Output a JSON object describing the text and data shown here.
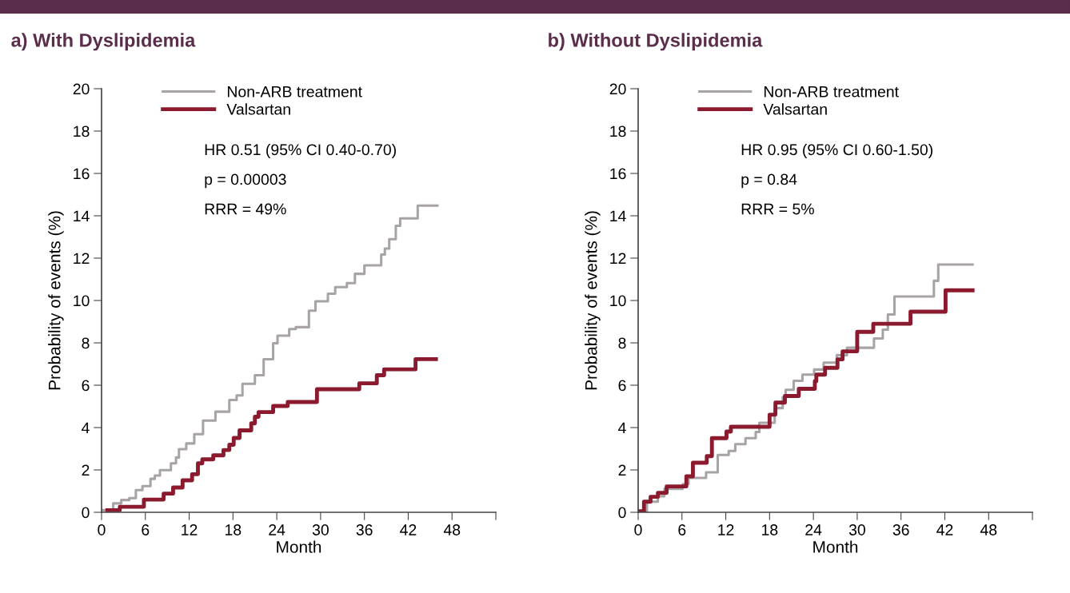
{
  "chart_data": [
    {
      "type": "step",
      "title": "a) With Dyslipidemia",
      "xlabel": "Month",
      "ylabel": "Probability of events (%)",
      "xlim": [
        0,
        54
      ],
      "xticks": [
        0,
        6,
        12,
        18,
        24,
        30,
        36,
        42,
        48,
        {
          "value": 54,
          "label": null
        }
      ],
      "ylim": [
        0,
        20
      ],
      "yticks": [
        0,
        2,
        4,
        6,
        8,
        10,
        12,
        14,
        16,
        18,
        20
      ],
      "grid": false,
      "legend": "top left",
      "annotations": [
        "HR 0.51 (95% CI 0.40-0.70)",
        "p = 0.00003",
        "RRR = 49%"
      ],
      "series": [
        {
          "name": "Non-ARB treatment",
          "color": "#a8a3a5",
          "x": [
            0,
            1.6,
            2.7,
            3.8,
            4.7,
            5.6,
            6.7,
            7.3,
            8.0,
            9.5,
            10.2,
            10.6,
            11.6,
            12.7,
            13.9,
            15.6,
            17.5,
            18.5,
            19.3,
            21.0,
            22.2,
            23.5,
            24.1,
            25.7,
            26.6,
            28.4,
            29.3,
            31.0,
            32.0,
            33.6,
            34.7,
            36.0,
            38.3,
            38.8,
            39.4,
            40.3,
            40.9,
            43.3,
            46.0
          ],
          "values": [
            0.1,
            0.42,
            0.58,
            0.67,
            1.05,
            1.24,
            1.58,
            1.74,
            1.99,
            2.31,
            2.59,
            2.98,
            3.25,
            3.69,
            4.33,
            4.75,
            5.3,
            5.52,
            6.07,
            6.47,
            7.23,
            7.98,
            8.34,
            8.65,
            8.74,
            9.52,
            9.96,
            10.32,
            10.63,
            10.82,
            11.26,
            11.66,
            12.17,
            12.45,
            12.9,
            13.53,
            13.88,
            14.48,
            14.48
          ]
        },
        {
          "name": "Valsartan",
          "color": "#8b1a2e",
          "x": [
            0.8,
            2.5,
            5.8,
            8.5,
            9.8,
            11.1,
            12.4,
            13.2,
            13.8,
            15.3,
            16.7,
            17.5,
            18.1,
            18.9,
            20.5,
            21.0,
            21.5,
            23.5,
            25.5,
            29.5,
            35.3,
            37.7,
            38.7,
            43.0,
            45.8
          ],
          "values": [
            0.1,
            0.26,
            0.6,
            0.88,
            1.17,
            1.51,
            1.8,
            2.31,
            2.5,
            2.69,
            2.94,
            3.19,
            3.51,
            3.87,
            4.2,
            4.51,
            4.73,
            5.02,
            5.21,
            5.81,
            6.09,
            6.47,
            6.75,
            7.23,
            7.23
          ]
        }
      ]
    },
    {
      "type": "step",
      "title": "b) Without Dyslipidemia",
      "xlabel": "Month",
      "ylabel": "Probability of events (%)",
      "xlim": [
        0,
        54
      ],
      "xticks": [
        0,
        6,
        12,
        18,
        24,
        30,
        36,
        42,
        48,
        {
          "value": 54,
          "label": null
        }
      ],
      "ylim": [
        0,
        20
      ],
      "yticks": [
        0,
        2,
        4,
        6,
        8,
        10,
        12,
        14,
        16,
        18,
        20
      ],
      "grid": false,
      "legend": "top left",
      "annotations": [
        "HR 0.95 (95% CI 0.60-1.50)",
        "p = 0.84",
        "RRR = 5%"
      ],
      "series": [
        {
          "name": "Non-ARB treatment",
          "color": "#a8a3a5",
          "x": [
            0,
            1.2,
            2.7,
            3.6,
            6.1,
            6.9,
            9.3,
            10.9,
            12.4,
            13.3,
            14.7,
            16.1,
            16.6,
            18.7,
            19.8,
            20.2,
            21.3,
            22.5,
            24.1,
            25.4,
            27.2,
            28.6,
            32.3,
            33.5,
            34.2,
            35.1,
            40.5,
            41.1,
            45.8
          ],
          "values": [
            0.05,
            0.5,
            0.76,
            1.11,
            1.33,
            1.62,
            1.89,
            2.71,
            2.9,
            3.22,
            3.5,
            3.79,
            4.23,
            4.92,
            5.43,
            5.78,
            6.21,
            6.5,
            6.74,
            7.07,
            7.42,
            7.77,
            8.21,
            8.62,
            9.34,
            10.19,
            10.93,
            11.7,
            11.7
          ]
        },
        {
          "name": "Valsartan",
          "color": "#8b1a2e",
          "x": [
            0,
            0.8,
            1.7,
            2.7,
            3.9,
            6.6,
            7.5,
            9.4,
            10.1,
            12.1,
            12.7,
            18.0,
            18.8,
            20.1,
            22.0,
            24.2,
            24.4,
            25.6,
            27.3,
            28.0,
            30.0,
            32.2,
            37.3,
            42.1,
            45.8
          ],
          "values": [
            0.05,
            0.5,
            0.73,
            0.92,
            1.22,
            1.7,
            2.34,
            2.65,
            3.5,
            3.81,
            4.04,
            4.61,
            5.18,
            5.49,
            5.83,
            6.19,
            6.5,
            6.82,
            7.22,
            7.6,
            8.52,
            8.9,
            9.47,
            10.48,
            10.48
          ]
        }
      ]
    }
  ]
}
